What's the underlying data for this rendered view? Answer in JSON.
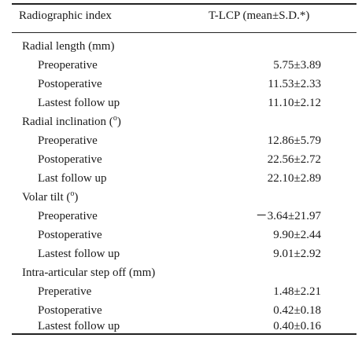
{
  "header": {
    "index_label": "Radiographic index",
    "value_label": "T-LCP (mean±S.D.*)"
  },
  "sections": [
    {
      "title": "Radial length (mm)",
      "rows": [
        {
          "label": "Preoperative",
          "value": "5.75±3.89"
        },
        {
          "label": "Postoperative",
          "value": "11.53±2.33"
        },
        {
          "label": "Lastest follow up",
          "value": "11.10±2.12"
        }
      ]
    },
    {
      "title_prefix": "Radial inclination (",
      "title_sup": "o",
      "title_suffix": ")",
      "rows": [
        {
          "label": "Preoperative",
          "value": "12.86±5.79"
        },
        {
          "label": "Postoperative",
          "value": "22.56±2.72"
        },
        {
          "label": "Last follow up",
          "value": "22.10±2.89"
        }
      ]
    },
    {
      "title_prefix": "Volar tilt (",
      "title_sup": "o",
      "title_suffix": ")",
      "rows": [
        {
          "label": "Preoperative",
          "value": "－3.64±21.97"
        },
        {
          "label": "Postoperative",
          "value": "9.90±2.44"
        },
        {
          "label": "Lastest follow up",
          "value": "9.01±2.92"
        }
      ]
    },
    {
      "title": "Intra-articular step off (mm)",
      "rows": [
        {
          "label": "Preperative",
          "value": "1.48±2.21"
        },
        {
          "label": "Postoperative",
          "value": "0.42±0.18"
        },
        {
          "label": "Lastest follow up",
          "value": "0.40±0.16"
        }
      ]
    }
  ]
}
